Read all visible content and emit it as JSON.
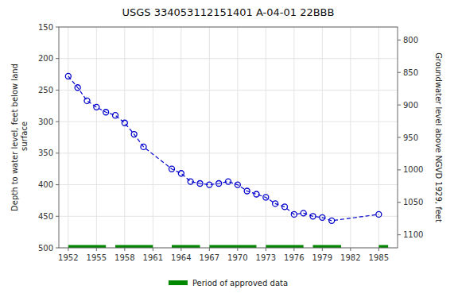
{
  "chart_data": {
    "type": "line",
    "title": "USGS 334053112151401 A-04-01 22BBB",
    "ylabel": "Depth to water level, feet below land\n surface",
    "y2label": "Groundwater level above NGVD 1929, feet",
    "x": [
      1952,
      1953,
      1954,
      1955,
      1956,
      1957,
      1958,
      1959,
      1960,
      1963,
      1964,
      1965,
      1966,
      1967,
      1968,
      1969,
      1970,
      1971,
      1972,
      1973,
      1974,
      1975,
      1976,
      1977,
      1978,
      1979,
      1980,
      1985
    ],
    "xlim": [
      1951,
      1987
    ],
    "xticks": [
      1952,
      1955,
      1958,
      1961,
      1964,
      1967,
      1970,
      1973,
      1976,
      1979,
      1982,
      1985
    ],
    "ylim": [
      500,
      150
    ],
    "yticks": [
      150,
      200,
      250,
      300,
      350,
      400,
      450,
      500
    ],
    "y2lim": [
      1120,
      780
    ],
    "y2ticks": [
      800,
      850,
      900,
      950,
      1000,
      1050,
      1100
    ],
    "grid": true,
    "legend": "bottom",
    "series": [
      {
        "type": "line",
        "color": "#0000cc",
        "marker": "circle",
        "line_style": "dashed",
        "values": [
          228,
          246,
          267,
          277,
          285,
          290,
          302,
          320,
          340,
          375,
          382,
          395,
          398,
          400,
          398,
          395,
          400,
          410,
          415,
          420,
          430,
          435,
          447,
          445,
          450,
          452,
          457,
          447
        ]
      },
      {
        "type": "range_bar",
        "name": "Period of approved data",
        "color": "#008800",
        "y": 500,
        "starts": [
          1952,
          1957,
          1963,
          1967,
          1973,
          1978,
          1985
        ],
        "ends": [
          1956,
          1961,
          1966,
          1972,
          1977,
          1981,
          1986
        ]
      }
    ]
  }
}
